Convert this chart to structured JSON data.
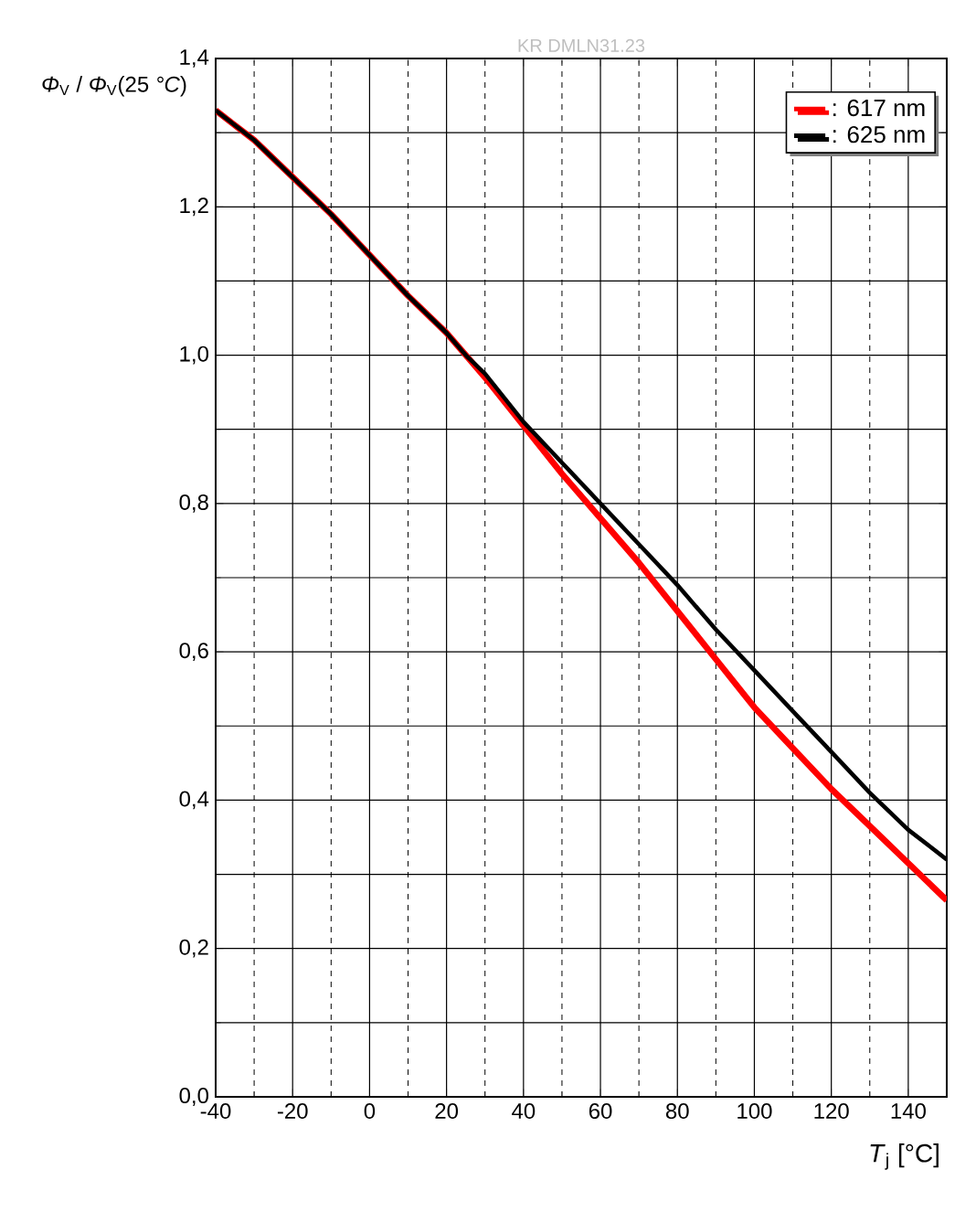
{
  "chart_data": {
    "type": "line",
    "xlabel": "*T*$_{j}$ [°C]",
    "ylabel": "*Φ*$_{V}$ / *Φ*$_{V}$(25 *°C*)",
    "annotations": [
      "KR DMLN31.23"
    ],
    "x": [
      -40,
      -30,
      -20,
      -10,
      0,
      10,
      20,
      25,
      30,
      40,
      50,
      60,
      70,
      80,
      90,
      100,
      110,
      120,
      130,
      140,
      150
    ],
    "series": [
      {
        "name": ": 617 nm",
        "color": "#ff0000",
        "values": [
          1.33,
          1.29,
          1.24,
          1.19,
          1.135,
          1.08,
          1.03,
          1.0,
          0.97,
          0.905,
          0.84,
          0.78,
          0.72,
          0.655,
          0.59,
          0.525,
          0.47,
          0.415,
          0.365,
          0.315,
          0.265
        ]
      },
      {
        "name": ": 625 nm",
        "color": "#000000",
        "values": [
          1.33,
          1.29,
          1.24,
          1.19,
          1.135,
          1.08,
          1.03,
          1.0,
          0.975,
          0.91,
          0.855,
          0.8,
          0.745,
          0.69,
          0.63,
          0.575,
          0.52,
          0.465,
          0.41,
          0.36,
          0.32
        ]
      }
    ],
    "xlim": [
      -40,
      150
    ],
    "xticks": [
      -40,
      -20,
      0,
      20,
      40,
      60,
      80,
      100,
      120,
      140
    ],
    "ylim": [
      0,
      1.4
    ],
    "yticks": [
      {
        "value": 0,
        "label": "0,0"
      },
      {
        "value": 0.2,
        "label": "0,2"
      },
      {
        "value": 0.4,
        "label": "0,4"
      },
      {
        "value": 0.6,
        "label": "0,6"
      },
      {
        "value": 0.8,
        "label": "0,8"
      },
      {
        "value": 1.0,
        "label": "1,0"
      },
      {
        "value": 1.2,
        "label": "1,2"
      },
      {
        "value": 1.4,
        "label": "1,4"
      }
    ],
    "grid": true,
    "legend": "top right",
    "line_style": "solid",
    "marker": "none"
  }
}
